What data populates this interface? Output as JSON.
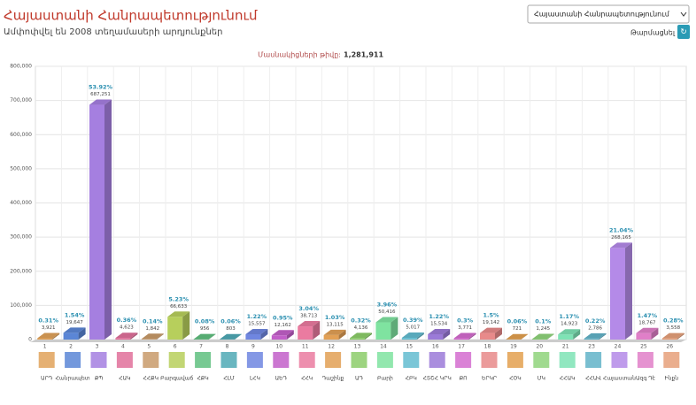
{
  "header": {
    "title": "Հայաստանի Հանրապետությունում",
    "subtitle": "Ամփոփվել են 2008 տեղամասերի արդյունքներ",
    "dropdown": "Հայաստանի Հանրապետությունում",
    "refresh": "Թարմացնել"
  },
  "participants": {
    "label": "Մասնակիցների թիվը:",
    "value": "1,281,911"
  },
  "chart_data": {
    "type": "bar3d",
    "categories": [
      "1",
      "2",
      "3",
      "4",
      "5",
      "6",
      "7",
      "8",
      "9",
      "10",
      "11",
      "12",
      "13",
      "14",
      "15",
      "16",
      "17",
      "18",
      "19",
      "20",
      "21",
      "23",
      "24",
      "25",
      "26"
    ],
    "names": [
      "ԱՐԴ",
      "Հանրապետ",
      "ՔՊ",
      "ՀԱԿ",
      "ՀՀՔԿ",
      "Բարգավաճ",
      "ՀՔԿ",
      "ՀԼՄ",
      "ԼՀԿ",
      "ԱԵԴ",
      "ՀՀԿ",
      "Դաշինք",
      "ԱԴ",
      "Բարի",
      "ՀԲԿ",
      "ՀՏՇՀ ԿՐԿ",
      "ՔՈ",
      "ԵՐԿՐ",
      "ՀՕԿ",
      "ՄԿ",
      "ՀՀԱԿ",
      "ՀՀԱՎ",
      "Հայաստան",
      "Ազգ Դէ",
      "Ինքն"
    ],
    "values": [
      3921,
      19647,
      687251,
      4623,
      1842,
      66633,
      956,
      803,
      15557,
      12162,
      38713,
      13115,
      4136,
      50416,
      5017,
      15534,
      3771,
      19142,
      721,
      1245,
      14923,
      2786,
      268165,
      18767,
      3558
    ],
    "value_labels": [
      "3,921",
      "19,647",
      "687,251",
      "4,623",
      "1,842",
      "66,633",
      "956",
      "803",
      "15,557",
      "12,162",
      "38,713",
      "13,115",
      "4,136",
      "50,416",
      "5,017",
      "15,534",
      "3,771",
      "19,142",
      "721",
      "1,245",
      "14,923",
      "2,786",
      "268,165",
      "18,767",
      "3,558"
    ],
    "percent_labels": [
      "0.31%",
      "1.54%",
      "53.92%",
      "0.36%",
      "0.14%",
      "5.23%",
      "0.08%",
      "0.06%",
      "1.22%",
      "0.95%",
      "3.04%",
      "1.03%",
      "0.32%",
      "3.96%",
      "0.39%",
      "1.22%",
      "0.3%",
      "1.5%",
      "0.06%",
      "0.1%",
      "1.17%",
      "0.22%",
      "21.04%",
      "1.47%",
      "0.28%"
    ],
    "colors": [
      "#e0a25a",
      "#5b86d6",
      "#a57fe0",
      "#e0709a",
      "#c89a6a",
      "#b7cf5c",
      "#5fbf7f",
      "#4fa9b5",
      "#6f86e0",
      "#c25fc9",
      "#ea7ba0",
      "#e2a055",
      "#8ccd6a",
      "#7fe3a0",
      "#63bcd0",
      "#9b7ad8",
      "#d46ccf",
      "#e88a8a",
      "#e3a04f",
      "#8fd47b",
      "#7ee3b5",
      "#62b3c8",
      "#b48ae8",
      "#e07fc8",
      "#e6a07a"
    ],
    "ylim": [
      0,
      800000
    ],
    "yticks": [
      0,
      {
        "value": 100000,
        "label": "100,000"
      },
      {
        "value": 200000,
        "label": "200,000"
      },
      {
        "value": 300000,
        "label": "300,000"
      },
      {
        "value": 400000,
        "label": "400,000"
      },
      {
        "value": 500000,
        "label": "500,000"
      },
      {
        "value": 600000,
        "label": "600,000"
      },
      {
        "value": 700000,
        "label": "700,000"
      },
      {
        "value": 800000,
        "label": "800,000"
      }
    ],
    "grid": true
  }
}
